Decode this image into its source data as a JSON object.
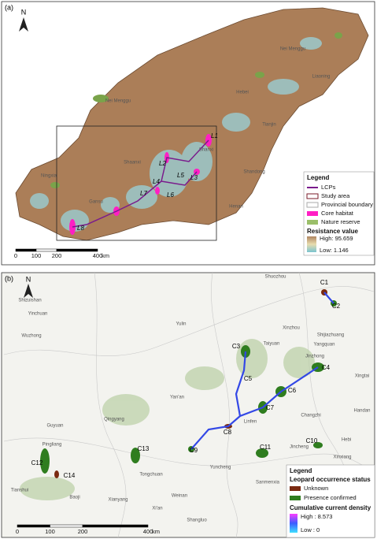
{
  "panel_a": {
    "label": "(a)",
    "north": "N",
    "places": [
      "Nei Menggu",
      "Nei Menggu",
      "Liaoning",
      "Hebei",
      "Tianjin",
      "Shanxi",
      "Shandong",
      "Shaanxi",
      "Ningxia",
      "Gansu",
      "Henan"
    ],
    "lcp_labels": [
      "L1",
      "L2",
      "L3",
      "L4",
      "L5",
      "L6",
      "L7",
      "L8"
    ],
    "legend": {
      "title": "Legend",
      "items": [
        "LCPs",
        "Study area",
        "Provincial boundary",
        "Core habitat",
        "Nature reserve"
      ],
      "ramp_title": "Resistance value",
      "high": "High: 95.659",
      "low": "Low: 1.146"
    },
    "scale": {
      "ticks": [
        0,
        100,
        200,
        400
      ],
      "unit": "km"
    }
  },
  "panel_b": {
    "label": "(b)",
    "north": "N",
    "places": [
      "Shuozhou",
      "Shizuishan",
      "Yinchuan",
      "Wuzhong",
      "Xinzhou",
      "Shijiazhuang",
      "Yangquan",
      "Yulin",
      "Taiyuan",
      "Jinzhong",
      "Xingtai",
      "Yan'an",
      "Changzhi",
      "Handan",
      "Guyuan",
      "Qingyang",
      "Linfen",
      "Jincheng",
      "Hebi",
      "Pingliang",
      "Tongchuan",
      "Yuncheng",
      "Xinxiang",
      "Tianshui",
      "Baoji",
      "Xianyang",
      "Weinan",
      "Sanmenxia",
      "Xi'an",
      "Shangluo"
    ],
    "cores": [
      "C1",
      "C2",
      "C3",
      "C4",
      "C5",
      "C6",
      "C7",
      "C8",
      "C9",
      "C10",
      "C11",
      "C12",
      "C13",
      "C14"
    ],
    "legend": {
      "title": "Legend",
      "status_title": "Leopard occurrence status",
      "items": [
        "Unknown",
        "Presence confirmed"
      ],
      "ramp_title": "Cumulative current density",
      "high": "High : 8.573",
      "low": "Low : 0"
    },
    "scale": {
      "ticks": [
        0,
        100,
        200,
        400
      ],
      "unit": "km"
    }
  }
}
